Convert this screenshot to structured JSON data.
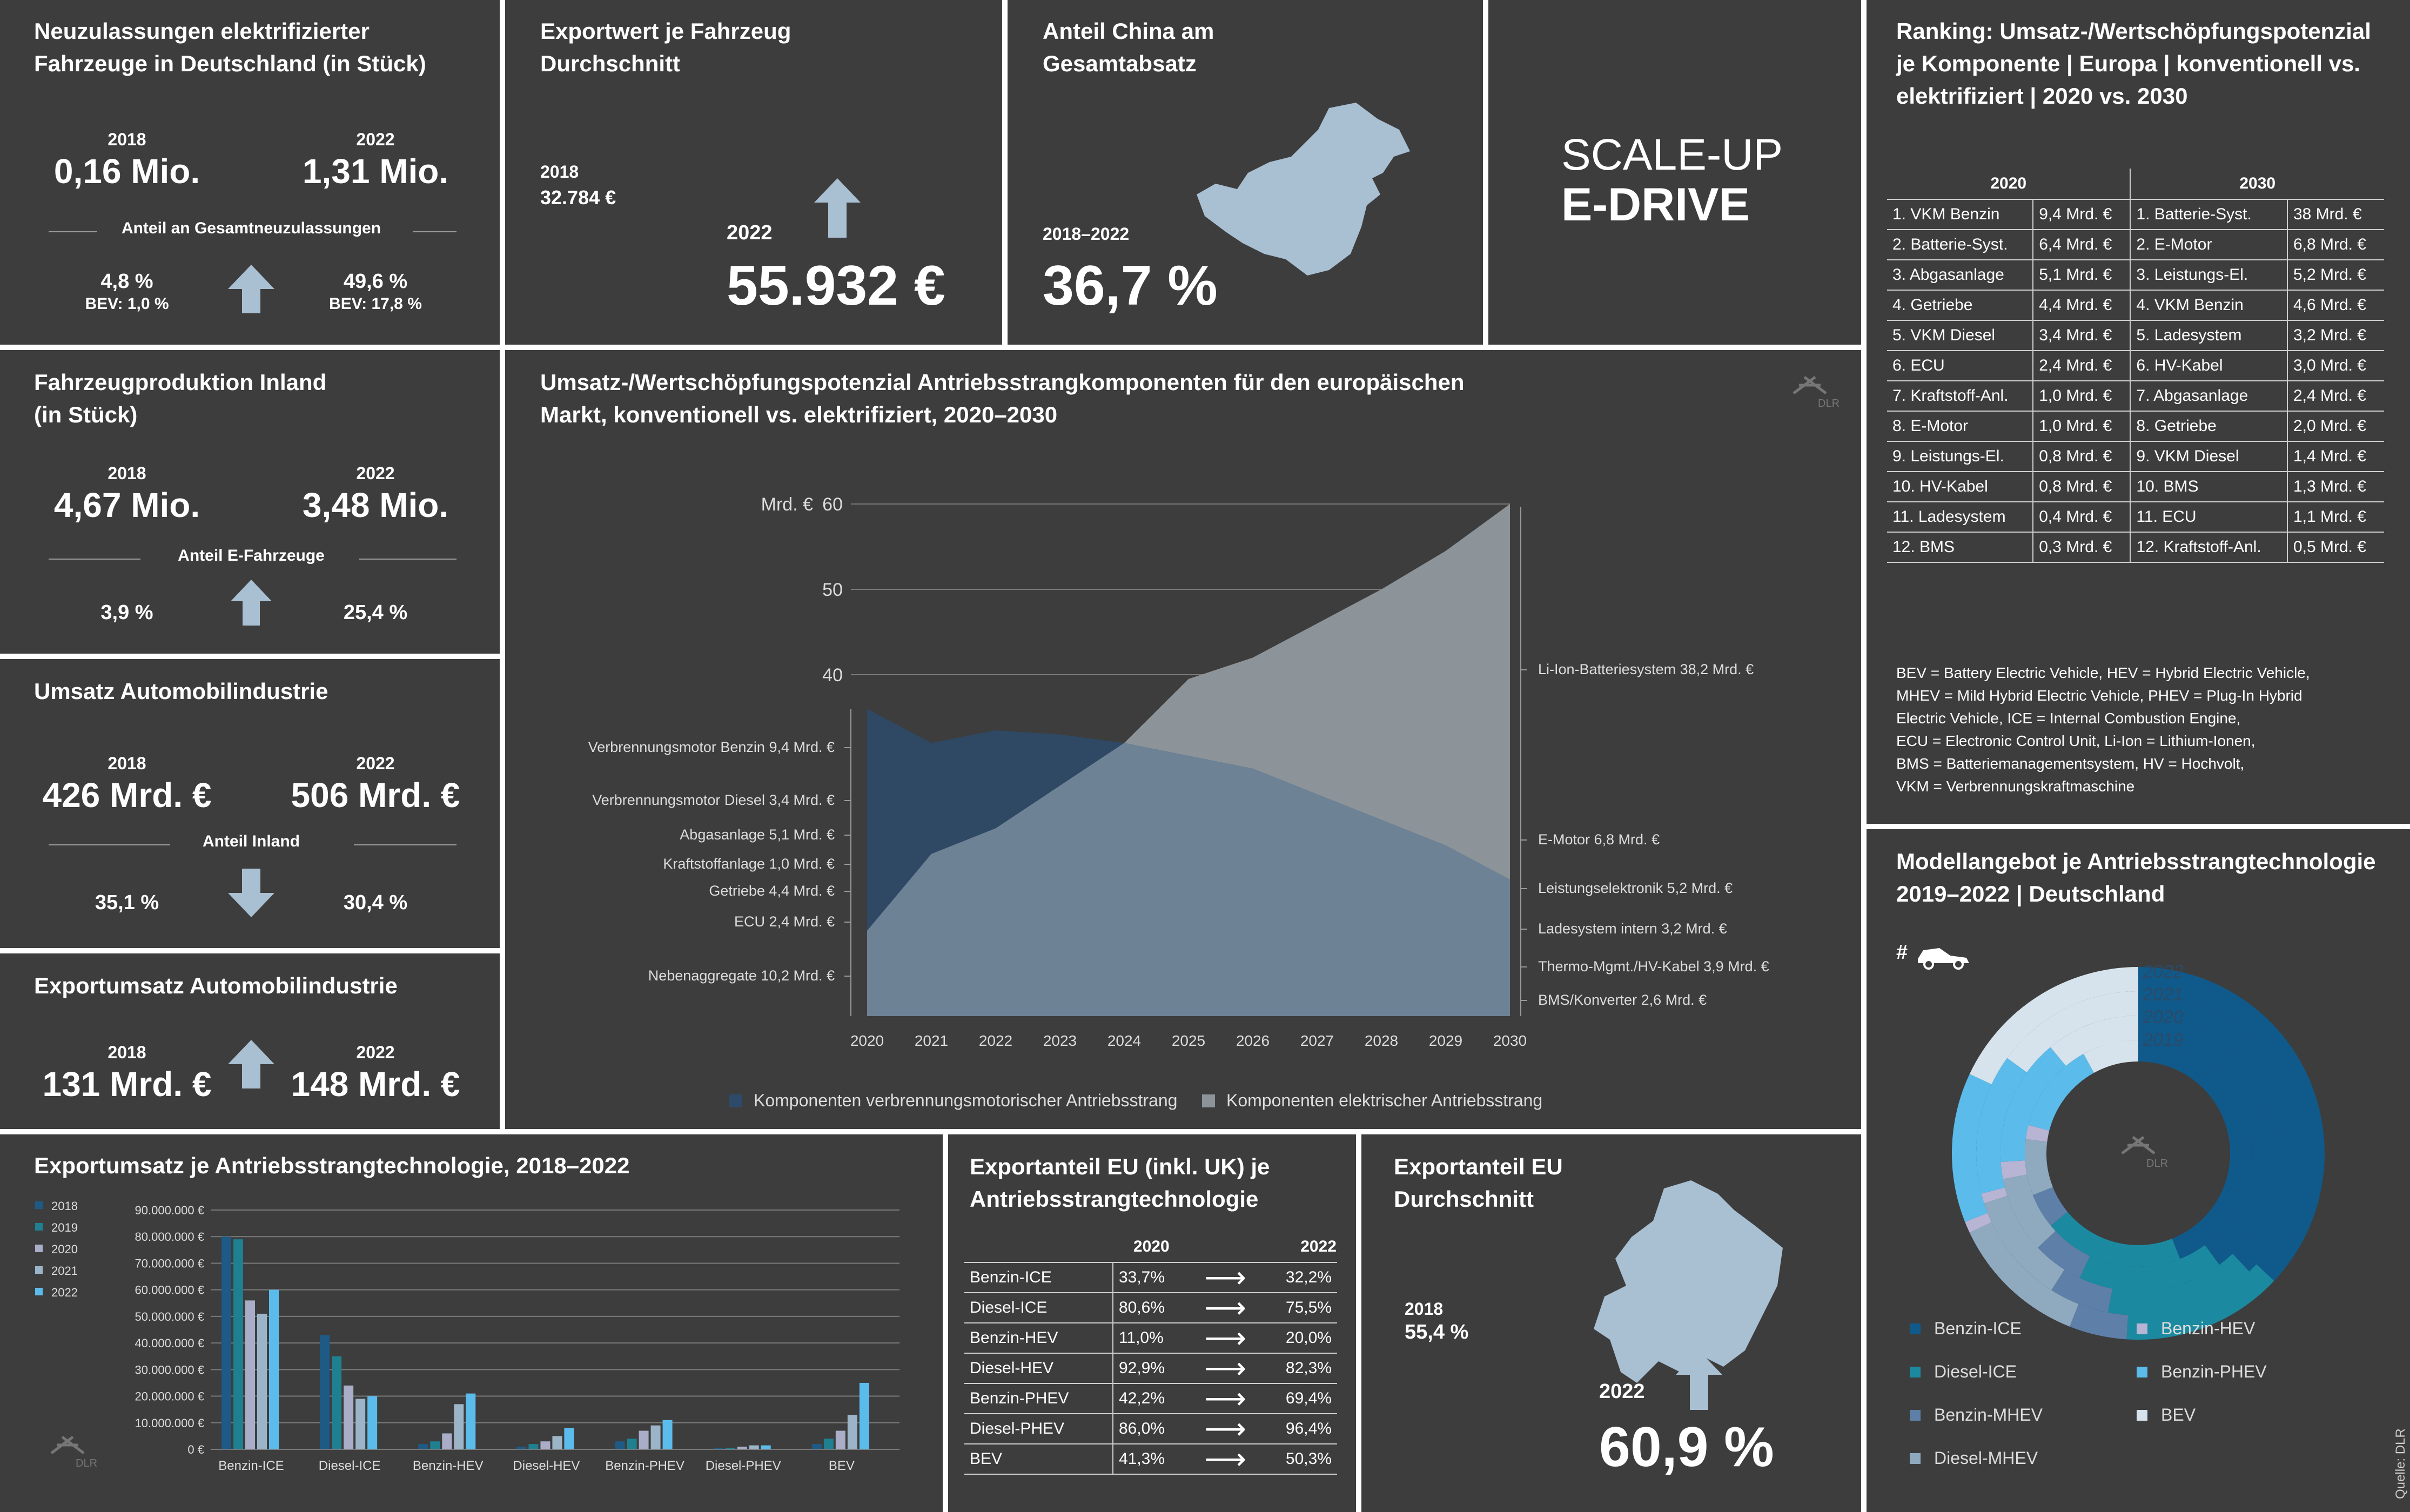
{
  "p1": {
    "title": "Neuzulassungen elektrifizierter Fahrzeuge in Deutschland (in Stück)",
    "y1": "2018",
    "v1": "0,16 Mio.",
    "y2": "2022",
    "v2": "1,31 Mio.",
    "share_label": "Anteil an Gesamtneuzulassungen",
    "s1": "4,8 %",
    "s1b": "BEV: 1,0 %",
    "s2": "49,6 %",
    "s2b": "BEV: 17,8 %"
  },
  "p2": {
    "title": "Exportwert je Fahrzeug Durchschnitt",
    "y1": "2018",
    "v1": "32.784 €",
    "y2": "2022",
    "v2": "55.932 €"
  },
  "p3": {
    "title": "Anteil China am Gesamtabsatz",
    "period": "2018–2022",
    "value": "36,7 %"
  },
  "logo": {
    "line1": "SCALE-UP",
    "line2": "E-DRIVE"
  },
  "p5": {
    "title": "Fahrzeugproduktion Inland (in Stück)",
    "y1": "2018",
    "v1": "4,67 Mio.",
    "y2": "2022",
    "v2": "3,48 Mio.",
    "share_label": "Anteil E-Fahrzeuge",
    "s1": "3,9 %",
    "s2": "25,4 %"
  },
  "p6": {
    "title": "Umsatz Automobilindustrie",
    "y1": "2018",
    "v1": "426 Mrd. €",
    "y2": "2022",
    "v2": "506 Mrd. €",
    "share_label": "Anteil Inland",
    "s1": "35,1 %",
    "s2": "30,4 %"
  },
  "p7": {
    "title": "Exportumsatz Automobilindustrie",
    "y1": "2018",
    "v1": "131 Mrd. €",
    "y2": "2022",
    "v2": "148 Mrd. €"
  },
  "ranking": {
    "title": "Ranking: Umsatz-/Wertschöpfungspotenzial je Komponente | Europa | konventionell vs. elektrifiziert | 2020 vs. 2030",
    "h2020": "2020",
    "h2030": "2030",
    "rows": [
      [
        "1. VKM Benzin",
        "9,4 Mrd. €",
        "1. Batterie-Syst.",
        "38 Mrd. €"
      ],
      [
        "2. Batterie-Syst.",
        "6,4 Mrd. €",
        "2. E-Motor",
        "6,8 Mrd. €"
      ],
      [
        "3. Abgasanlage",
        "5,1 Mrd. €",
        "3. Leistungs-El.",
        "5,2 Mrd. €"
      ],
      [
        "4. Getriebe",
        "4,4 Mrd. €",
        "4. VKM Benzin",
        "4,6 Mrd. €"
      ],
      [
        "5. VKM Diesel",
        "3,4 Mrd. €",
        "5. Ladesystem",
        "3,2 Mrd. €"
      ],
      [
        "6. ECU",
        "2,4 Mrd. €",
        "6. HV-Kabel",
        "3,0 Mrd. €"
      ],
      [
        "7. Kraftstoff-Anl.",
        "1,0 Mrd. €",
        "7. Abgasanlage",
        "2,4 Mrd. €"
      ],
      [
        "8. E-Motor",
        "1,0 Mrd. €",
        "8. Getriebe",
        "2,0 Mrd. €"
      ],
      [
        "9. Leistungs-El.",
        "0,8 Mrd. €",
        "9. VKM Diesel",
        "1,4 Mrd. €"
      ],
      [
        "10. HV-Kabel",
        "0,8 Mrd. €",
        "10. BMS",
        "1,3 Mrd. €"
      ],
      [
        "11. Ladesystem",
        "0,4 Mrd. €",
        "11. ECU",
        "1,1 Mrd. €"
      ],
      [
        "12. BMS",
        "0,3 Mrd. €",
        "12. Kraftstoff-Anl.",
        "0,5 Mrd. €"
      ]
    ],
    "glossary": [
      "BEV = Battery Electric Vehicle, HEV = Hybrid Electric Vehicle,",
      "MHEV = Mild Hybrid Electric Vehicle, PHEV = Plug-In Hybrid",
      "Electric Vehicle, ICE = Internal Combustion Engine,",
      "ECU = Electronic Control Unit, Li-Ion = Lithium-Ionen,",
      "BMS = Batteriemanagementsystem, HV = Hochvolt,",
      "VKM = Verbrennungskraftmaschine"
    ]
  },
  "area": {
    "title1": "Umsatz-/Wertschöpfungspotenzial Antriebsstrangkomponenten für den europäischen",
    "title2": "Markt, konventionell vs. elektrifiziert, 2020–2030",
    "unit": "Mrd. €",
    "left_labels": [
      "Verbrennungsmotor Benzin 9,4 Mrd. €",
      "Verbrennungsmotor Diesel 3,4 Mrd. €",
      "Abgasanlage 5,1 Mrd. €",
      "Kraftstoffanlage 1,0 Mrd. €",
      "Getriebe 4,4 Mrd. €",
      "ECU 2,4 Mrd. €",
      "Nebenaggregate 10,2 Mrd. €"
    ],
    "right_labels": [
      "Li-Ion-Batteriesystem 38,2 Mrd. €",
      "E-Motor 6,8 Mrd. €",
      "Leistungselektronik 5,2 Mrd. €",
      "Ladesystem intern 3,2 Mrd. €",
      "Thermo-Mgmt./HV-Kabel 3,9 Mrd. €",
      "BMS/Konverter 2,6 Mrd. €"
    ],
    "legend1": "Komponenten verbrennungsmotorischer Antriebsstrang",
    "legend2": "Komponenten elektrischer Antriebsstrang",
    "logo": "DLR"
  },
  "bars": {
    "title": "Exportumsatz je Antriebsstrangtechnologie, 2018–2022",
    "logo": "DLR"
  },
  "exp": {
    "title": "Exportanteil EU (inkl. UK) je Antriebsstrangtechnologie",
    "h1": "2020",
    "h2": "2022",
    "rows": [
      [
        "Benzin-ICE",
        "33,7%",
        "32,2%"
      ],
      [
        "Diesel-ICE",
        "80,6%",
        "75,5%"
      ],
      [
        "Benzin-HEV",
        "11,0%",
        "20,0%"
      ],
      [
        "Diesel-HEV",
        "92,9%",
        "82,3%"
      ],
      [
        "Benzin-PHEV",
        "42,2%",
        "69,4%"
      ],
      [
        "Diesel-PHEV",
        "86,0%",
        "96,4%"
      ],
      [
        "BEV",
        "41,3%",
        "50,3%"
      ]
    ]
  },
  "eu": {
    "title": "Exportanteil EU Durchschnitt",
    "y1": "2018",
    "v1": "55,4 %",
    "y2": "2022",
    "v2": "60,9 %"
  },
  "donut": {
    "title": "Modellangebot je Antriebsstrangtechnologie 2019–2022 | Deutschland",
    "hash": "#",
    "years": [
      "2022",
      "2021",
      "2020",
      "2019"
    ],
    "logo": "DLR"
  },
  "source": "Quelle: DLR",
  "chart_data": [
    {
      "type": "area",
      "title": "Umsatz-/Wertschöpfungspotenzial Antriebsstrangkomponenten für den europäischen Markt, konventionell vs. elektrifiziert, 2020–2030",
      "ylabel": "Mrd. €",
      "x": [
        2020,
        2021,
        2022,
        2023,
        2024,
        2025,
        2026,
        2027,
        2028,
        2029,
        2030
      ],
      "x_ticks": [
        "2020",
        "2021",
        "2022",
        "2023",
        "2024",
        "2025",
        "2026",
        "2027",
        "2028",
        "2029",
        "2030"
      ],
      "y_ticks": [
        "40",
        "50",
        "60"
      ],
      "ylim": [
        0,
        60
      ],
      "series": [
        {
          "name": "Komponenten verbrennungsmotorischer Antriebsstrang",
          "color": "#2d4a6a",
          "values": [
            36,
            32,
            33.5,
            33,
            32,
            30.5,
            29,
            26,
            23,
            20,
            16
          ]
        },
        {
          "name": "Komponenten elektrischer Antriebsstrang",
          "color": "#8d9499",
          "values": [
            10,
            19,
            22,
            27,
            32,
            39.5,
            42,
            46,
            50,
            54.5,
            60
          ]
        }
      ]
    },
    {
      "type": "bar",
      "title": "Exportumsatz je Antriebsstrangtechnologie, 2018–2022",
      "categories": [
        "Benzin-ICE",
        "Diesel-ICE",
        "Benzin-HEV",
        "Diesel-HEV",
        "Benzin-PHEV",
        "Diesel-PHEV",
        "BEV"
      ],
      "y_ticks": [
        "0 €",
        "10.000.000 €",
        "20.000.000 €",
        "30.000.000 €",
        "40.000.000 €",
        "50.000.000 €",
        "60.000.000 €",
        "70.000.000 €",
        "80.000.000 €",
        "90.000.000 €"
      ],
      "ylim": [
        0,
        90000000
      ],
      "series": [
        {
          "name": "2018",
          "color": "#1d5a85",
          "values": [
            80000000,
            43000000,
            2000000,
            1000000,
            3000000,
            500000,
            2000000
          ]
        },
        {
          "name": "2019",
          "color": "#1e8090",
          "values": [
            79000000,
            35000000,
            3000000,
            2000000,
            4000000,
            500000,
            4000000
          ]
        },
        {
          "name": "2020",
          "color": "#a9adc8",
          "values": [
            56000000,
            24000000,
            6000000,
            3000000,
            7000000,
            1000000,
            7000000
          ]
        },
        {
          "name": "2021",
          "color": "#9cb4c7",
          "values": [
            51000000,
            19000000,
            17000000,
            5000000,
            9000000,
            1500000,
            13000000
          ]
        },
        {
          "name": "2022",
          "color": "#5bbcec",
          "values": [
            60000000,
            20000000,
            21000000,
            8000000,
            11000000,
            1500000,
            25000000
          ]
        }
      ]
    },
    {
      "type": "pie",
      "title": "Modellangebot je Antriebsstrangtechnologie 2019–2022 | Deutschland",
      "rings": [
        "2022",
        "2021",
        "2020",
        "2019"
      ],
      "categories": [
        "Benzin-ICE",
        "Diesel-ICE",
        "Benzin-MHEV",
        "Diesel-MHEV",
        "Benzin-HEV",
        "Benzin-PHEV",
        "BEV"
      ],
      "colors": [
        "#0f5a8a",
        "#1b8aa1",
        "#5d7fa8",
        "#8fa9bf",
        "#b7b4d4",
        "#5bbcec",
        "#d6e3ec"
      ],
      "series": [
        {
          "name": "2022",
          "values": [
            37,
            14,
            5,
            12,
            1,
            13,
            18
          ]
        },
        {
          "name": "2021",
          "values": [
            38,
            15,
            6,
            11,
            1,
            14,
            15
          ]
        },
        {
          "name": "2020",
          "values": [
            40,
            17,
            6,
            9,
            2,
            15,
            11
          ]
        },
        {
          "name": "2019",
          "values": [
            44,
            20,
            5,
            8,
            2,
            13,
            8
          ]
        }
      ]
    }
  ]
}
